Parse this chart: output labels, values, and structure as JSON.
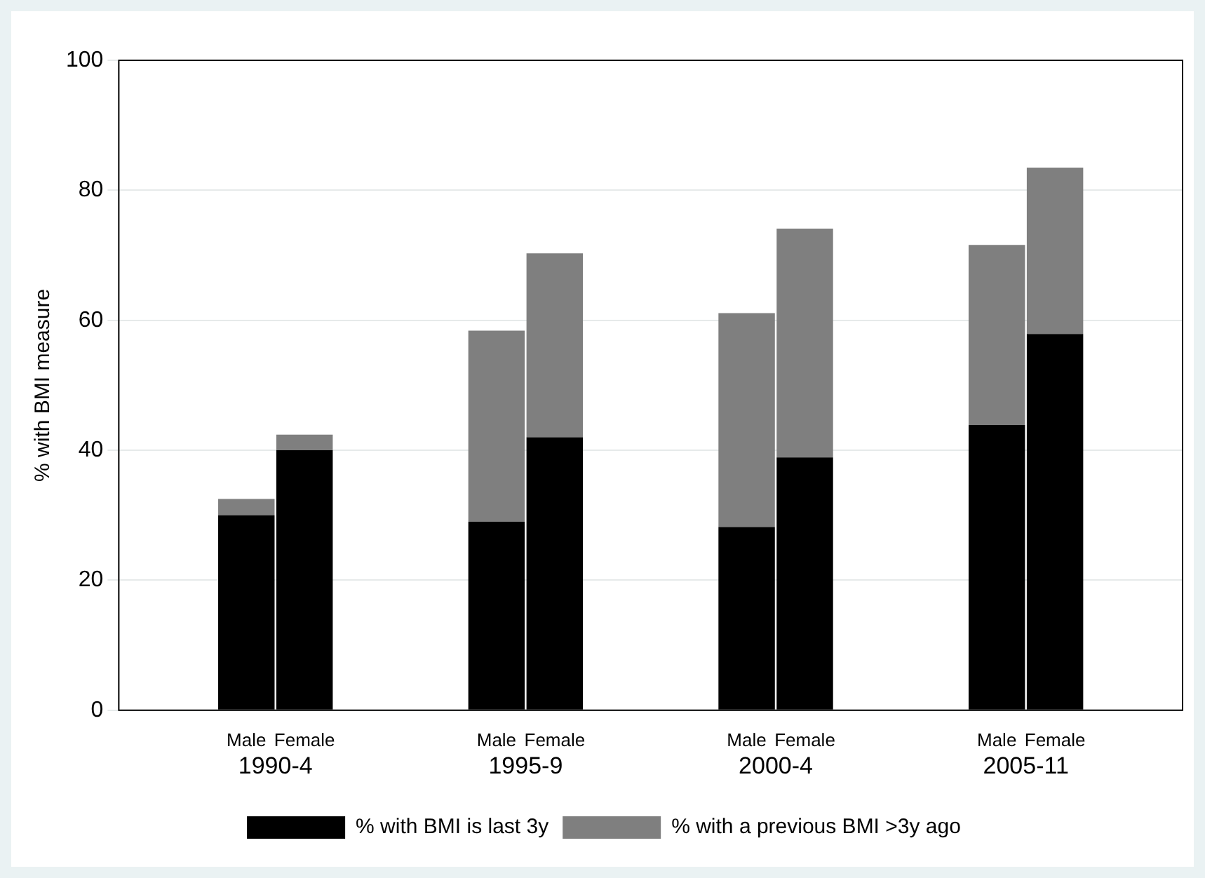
{
  "chart_data": {
    "type": "bar",
    "stacked": true,
    "ylabel": "% with BMI measure",
    "categories": [
      "Male",
      "Female",
      "Male",
      "Female",
      "Male",
      "Female",
      "Male",
      "Female"
    ],
    "series": [
      {
        "name": "% with BMI is last 3y",
        "color": "#000000",
        "values": [
          30,
          40,
          29,
          42,
          28.2,
          38.9,
          43.9,
          57.9
        ]
      },
      {
        "name": "% with a previous BMI >3y ago",
        "color": "#7f7f7f",
        "values": [
          2.5,
          2.4,
          29.4,
          28.3,
          32.9,
          35.2,
          27.7,
          25.6
        ]
      }
    ],
    "annotations": [
      "1990-4",
      "1995-9",
      "2000-4",
      "2005-11"
    ],
    "ylim": [
      0,
      100
    ],
    "yticks": [
      0,
      20,
      40,
      60,
      80,
      100
    ],
    "grid": "y",
    "legend": "bottom"
  }
}
